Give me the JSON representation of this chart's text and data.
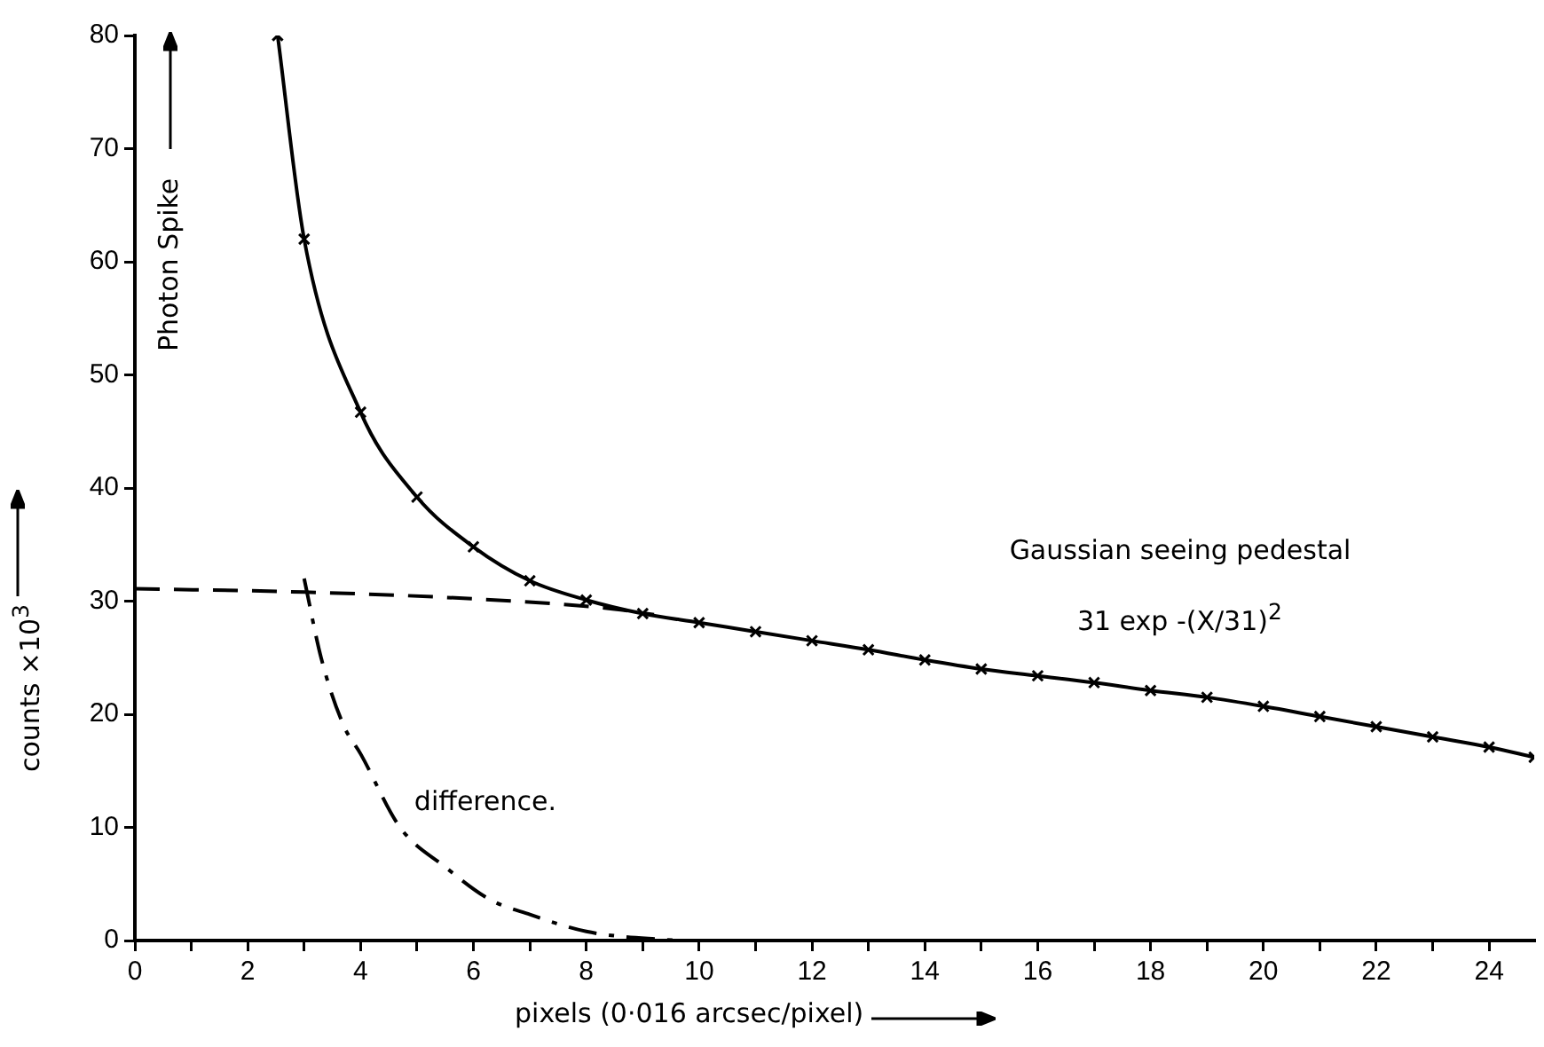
{
  "chart_data": {
    "type": "line",
    "xlabel": "pixels (0·016 arcsec/pixel)",
    "ylabel": "counts ×10$^{3}$",
    "xlim": [
      0,
      24.8
    ],
    "ylim": [
      0,
      80
    ],
    "xticks": [
      0,
      {
        "value": 1,
        "label": null
      },
      2,
      {
        "value": 3,
        "label": null
      },
      4,
      {
        "value": 5,
        "label": null
      },
      6,
      {
        "value": 7,
        "label": null
      },
      8,
      {
        "value": 9,
        "label": null
      },
      10,
      {
        "value": 11,
        "label": null
      },
      12,
      {
        "value": 13,
        "label": null
      },
      14,
      {
        "value": 15,
        "label": null
      },
      16,
      {
        "value": 17,
        "label": null
      },
      18,
      {
        "value": 19,
        "label": null
      },
      20,
      {
        "value": 21,
        "label": null
      },
      22,
      {
        "value": 23,
        "label": null
      },
      24
    ],
    "yticks": [
      0,
      10,
      20,
      30,
      40,
      50,
      60,
      70,
      80
    ],
    "grid": false,
    "legend": false,
    "series": [
      {
        "color": "#000000",
        "marker": "cross",
        "line_style": "solid",
        "x": [
          2.53,
          3,
          4,
          5,
          6,
          7,
          8,
          9,
          10,
          11,
          12,
          13,
          14,
          15,
          16,
          17,
          18,
          19,
          20,
          21,
          22,
          23,
          24,
          24.8
        ],
        "values": [
          80,
          62,
          46.7,
          39.2,
          34.8,
          31.8,
          30.1,
          28.9,
          28.1,
          27.3,
          26.5,
          25.7,
          24.8,
          24.0,
          23.4,
          22.8,
          22.1,
          21.5,
          20.7,
          19.8,
          18.9,
          18.0,
          17.1,
          16.2
        ]
      },
      {
        "color": "#000000",
        "marker": "none",
        "line_style": "dashed",
        "x": [
          0,
          3,
          6,
          8.5,
          9.2
        ],
        "values": [
          31.1,
          30.8,
          30.2,
          29.3,
          28.8
        ]
      },
      {
        "name": "difference.",
        "color": "#000000",
        "marker": "none",
        "line_style": "dashdot",
        "x": [
          3,
          3.3,
          3.7,
          4,
          4.7,
          5.5,
          6.3,
          7,
          8,
          9.3,
          9.8
        ],
        "values": [
          32,
          25,
          19,
          16.5,
          10,
          6.5,
          3.6,
          2.3,
          0.8,
          0.1,
          0
        ]
      }
    ],
    "annotations": [
      "Photon Spike",
      "Gaussian seeing pedestal",
      "31 exp -(X/31)$^{2}$"
    ]
  }
}
